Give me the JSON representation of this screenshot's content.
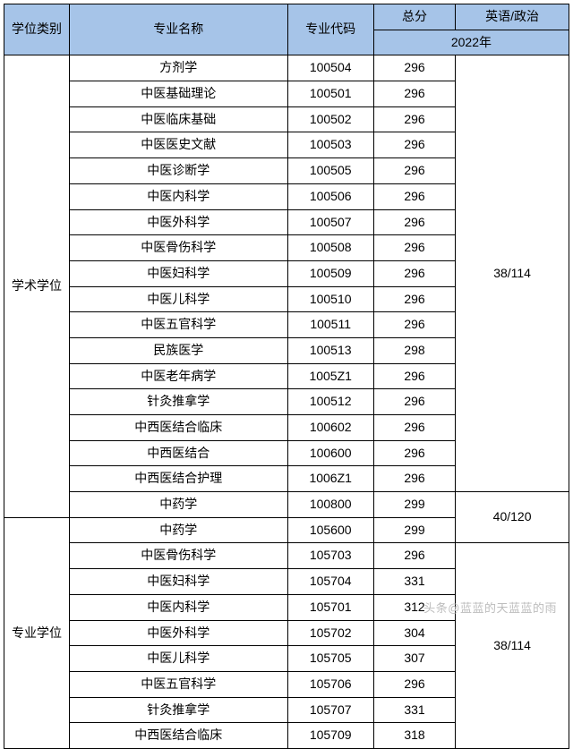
{
  "header": {
    "degree_category": "学位类别",
    "major_name": "专业名称",
    "major_code": "专业代码",
    "total_score": "总分",
    "english_politics": "英语/政治",
    "year": "2022年"
  },
  "categories": [
    {
      "label": "学术学位",
      "eng_merge": "38/114",
      "rows": [
        {
          "name": "方剂学",
          "code": "100504",
          "score": "296"
        },
        {
          "name": "中医基础理论",
          "code": "100501",
          "score": "296"
        },
        {
          "name": "中医临床基础",
          "code": "100502",
          "score": "296"
        },
        {
          "name": "中医医史文献",
          "code": "100503",
          "score": "296"
        },
        {
          "name": "中医诊断学",
          "code": "100505",
          "score": "296"
        },
        {
          "name": "中医内科学",
          "code": "100506",
          "score": "296"
        },
        {
          "name": "中医外科学",
          "code": "100507",
          "score": "296"
        },
        {
          "name": "中医骨伤科学",
          "code": "100508",
          "score": "296"
        },
        {
          "name": "中医妇科学",
          "code": "100509",
          "score": "296"
        },
        {
          "name": "中医儿科学",
          "code": "100510",
          "score": "296"
        },
        {
          "name": "中医五官科学",
          "code": "100511",
          "score": "296"
        },
        {
          "name": "民族医学",
          "code": "100513",
          "score": "298"
        },
        {
          "name": "中医老年病学",
          "code": "1005Z1",
          "score": "296"
        },
        {
          "name": "针灸推拿学",
          "code": "100512",
          "score": "296"
        },
        {
          "name": "中西医结合临床",
          "code": "100602",
          "score": "296"
        },
        {
          "name": "中西医结合",
          "code": "100600",
          "score": "296"
        },
        {
          "name": "中西医结合护理",
          "code": "1006Z1",
          "score": "296"
        },
        {
          "name": "中药学",
          "code": "100800",
          "score": "299"
        }
      ]
    },
    {
      "label": "专业学位",
      "rows": [
        {
          "name": "中药学",
          "code": "105600",
          "score": "299"
        },
        {
          "name": "中医骨伤科学",
          "code": "105703",
          "score": "296"
        },
        {
          "name": "中医妇科学",
          "code": "105704",
          "score": "331"
        },
        {
          "name": "中医内科学",
          "code": "105701",
          "score": "312"
        },
        {
          "name": "中医外科学",
          "code": "105702",
          "score": "304"
        },
        {
          "name": "中医儿科学",
          "code": "105705",
          "score": "307"
        },
        {
          "name": "中医五官科学",
          "code": "105706",
          "score": "296"
        },
        {
          "name": "针灸推拿学",
          "code": "105707",
          "score": "331"
        },
        {
          "name": "中西医结合临床",
          "code": "105709",
          "score": "318"
        }
      ]
    }
  ],
  "eng_groups": [
    {
      "label": "38/114",
      "span": 17
    },
    {
      "label": "40/120",
      "span": 2
    },
    {
      "label": "38/114",
      "span": 8
    }
  ],
  "watermark": "头条@蓝蓝的天蓝蓝的雨",
  "style": {
    "header_bg": "#a6c4e8",
    "border_color": "#000000",
    "font_size": 14,
    "watermark_color": "#bdbdbd"
  }
}
